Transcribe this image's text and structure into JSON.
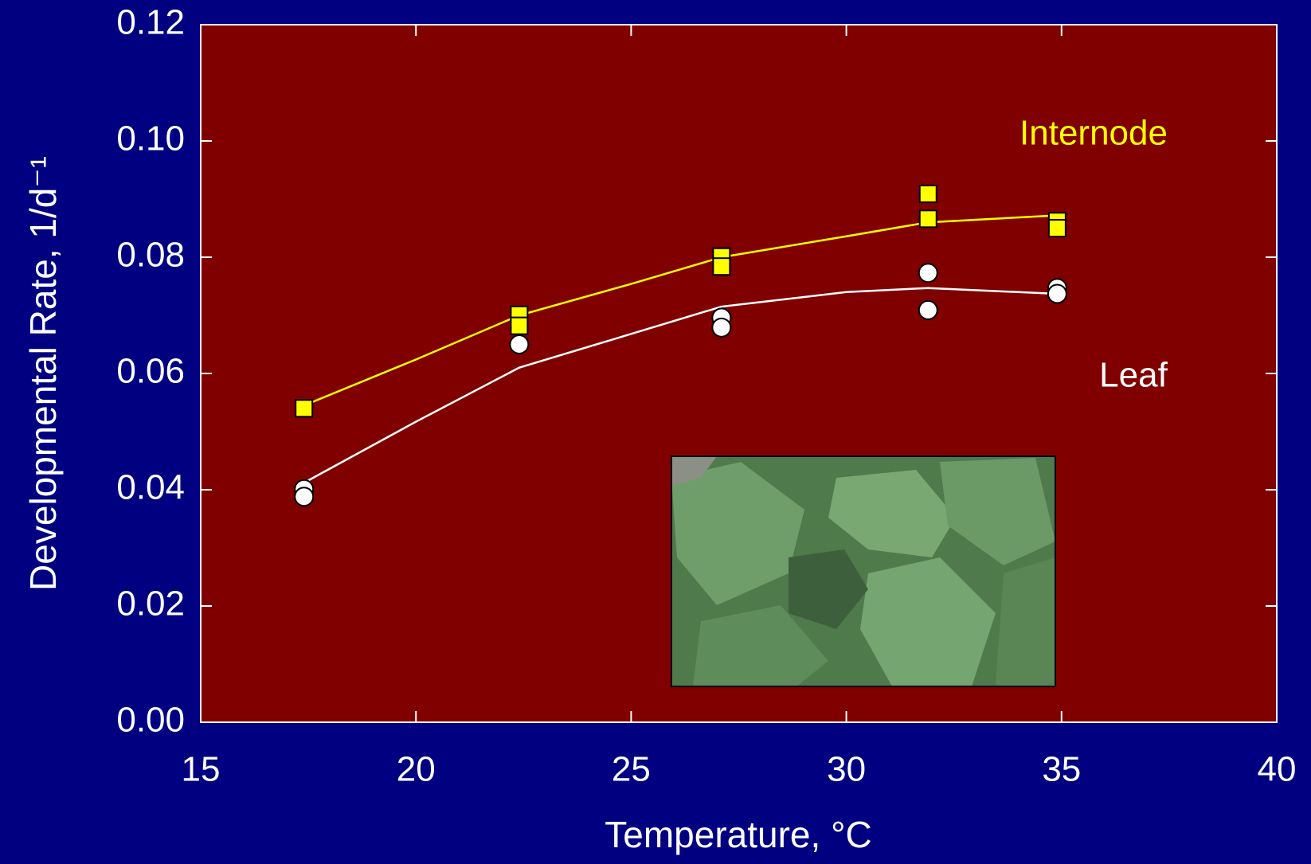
{
  "chart_data": {
    "type": "scatter",
    "xlabel": "Temperature, °C",
    "ylabel": "Developmental Rate,  1/d⁻¹",
    "xlim": [
      15,
      40
    ],
    "xticks": [
      15,
      20,
      25,
      30,
      35,
      40
    ],
    "ylim": [
      0,
      0.12
    ],
    "yticks": [
      {
        "value": 0,
        "label": "0.00"
      },
      {
        "value": 0.02,
        "label": "0.02"
      },
      {
        "value": 0.04,
        "label": "0.04"
      },
      {
        "value": 0.06,
        "label": "0.06"
      },
      {
        "value": 0.08,
        "label": "0.08"
      },
      {
        "value": 0.1,
        "label": "0.10"
      },
      {
        "value": 0.12,
        "label": "0.12"
      }
    ],
    "background": "#000080",
    "plot_background": "#800000",
    "series": [
      {
        "name": "Internode",
        "color": "#ffff00",
        "marker": "square",
        "x": [
          17.4,
          22.4,
          22.4,
          27.1,
          27.1,
          31.9,
          31.9,
          34.9,
          34.9
        ],
        "values": [
          0.054,
          0.0701,
          0.0682,
          0.0801,
          0.0784,
          0.0909,
          0.0866,
          0.0862,
          0.085
        ],
        "fit_x": [
          17.4,
          20,
          22.4,
          25,
          27.1,
          30,
          31.9,
          34.9
        ],
        "fit_values": [
          0.0545,
          0.0624,
          0.07,
          0.0754,
          0.08,
          0.0836,
          0.086,
          0.0872
        ]
      },
      {
        "name": "Leaf",
        "color": "#ffffff",
        "marker": "circle",
        "x": [
          17.4,
          17.4,
          22.4,
          27.1,
          27.1,
          31.9,
          31.9,
          34.9,
          34.9
        ],
        "values": [
          0.0401,
          0.0388,
          0.065,
          0.0696,
          0.0679,
          0.0773,
          0.0709,
          0.0747,
          0.0737
        ],
        "fit_x": [
          17.4,
          20,
          22.4,
          25,
          27.1,
          30,
          31.9,
          34.9
        ],
        "fit_values": [
          0.0412,
          0.0517,
          0.061,
          0.0668,
          0.0715,
          0.074,
          0.0747,
          0.0737
        ]
      }
    ]
  }
}
